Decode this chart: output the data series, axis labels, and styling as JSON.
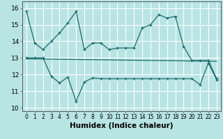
{
  "title": "",
  "xlabel": "Humidex (Indice chaleur)",
  "background_color": "#b8e4e4",
  "grid_color": "#ffffff",
  "line_color": "#1a6b6b",
  "xlim": [
    -0.5,
    23.5
  ],
  "ylim": [
    9.8,
    16.4
  ],
  "yticks": [
    10,
    11,
    12,
    13,
    14,
    15,
    16
  ],
  "xticks": [
    0,
    1,
    2,
    3,
    4,
    5,
    6,
    7,
    8,
    9,
    10,
    11,
    12,
    13,
    14,
    15,
    16,
    17,
    18,
    19,
    20,
    21,
    22,
    23
  ],
  "line1_x": [
    0,
    1,
    2,
    3,
    4,
    5,
    6,
    7,
    8,
    9,
    10,
    11,
    12,
    13,
    14,
    15,
    16,
    17,
    18,
    19,
    20,
    21,
    22,
    23
  ],
  "line1_y": [
    15.8,
    13.9,
    13.5,
    14.0,
    14.5,
    15.1,
    15.8,
    13.5,
    13.9,
    13.9,
    13.5,
    13.6,
    13.6,
    13.6,
    14.8,
    15.0,
    15.6,
    15.4,
    15.5,
    13.7,
    12.85,
    12.85,
    12.85,
    11.75
  ],
  "line2_x": [
    0,
    1,
    2,
    3,
    4,
    5,
    6,
    7,
    8,
    9,
    10,
    11,
    12,
    13,
    14,
    15,
    16,
    17,
    18,
    19,
    20,
    21,
    22,
    23
  ],
  "line2_y": [
    13.0,
    13.0,
    13.0,
    11.9,
    11.5,
    11.85,
    10.4,
    11.55,
    11.8,
    11.75,
    11.75,
    11.75,
    11.75,
    11.75,
    11.75,
    11.75,
    11.75,
    11.75,
    11.75,
    11.75,
    11.75,
    11.4,
    12.7,
    11.7
  ],
  "line3_x": [
    0,
    23
  ],
  "line3_y": [
    12.95,
    12.8
  ],
  "xlabel_fontsize": 7.5,
  "tick_fontsize": 6.5
}
